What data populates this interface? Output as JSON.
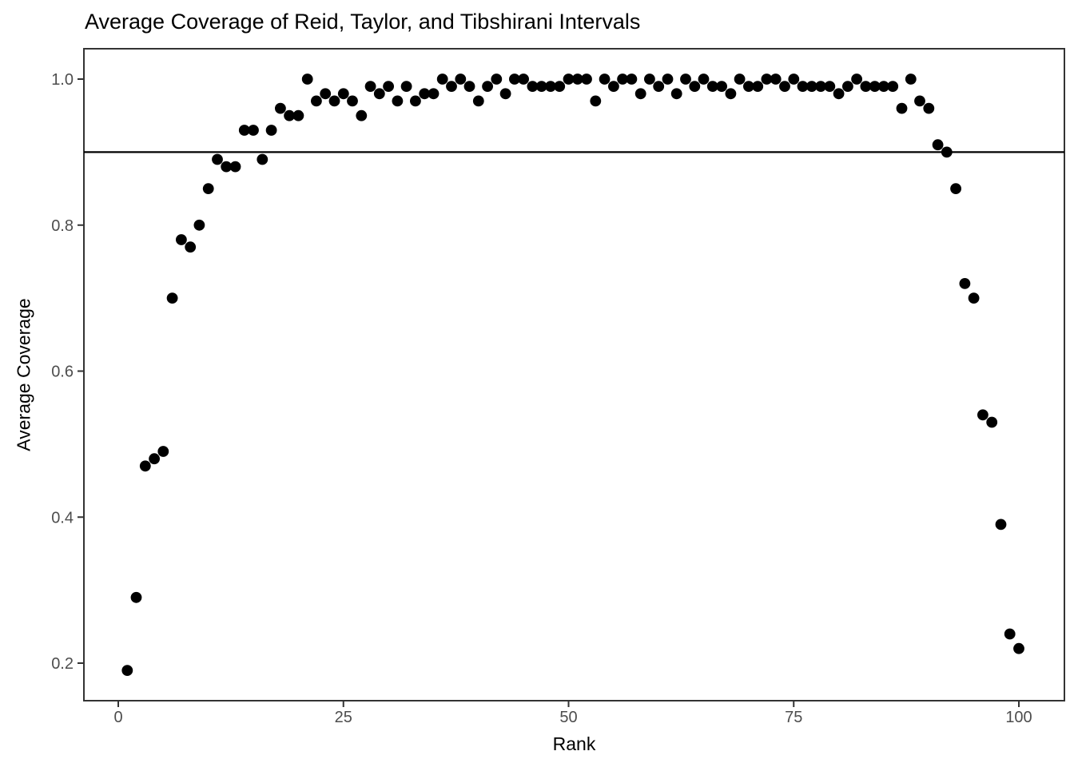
{
  "figure": {
    "title": "Average Coverage of Reid, Taylor, and Tibshirani Intervals",
    "x_axis_label": "Rank",
    "y_axis_label": "Average Coverage",
    "colors": {
      "point": "#000000",
      "reference_line": "#000000",
      "panel_border": "#333333",
      "tick_mark": "#333333",
      "tick_label": "#4d4d4d",
      "title_text": "#000000",
      "background": "#ffffff"
    }
  },
  "chart_data": {
    "type": "scatter",
    "title": "Average Coverage of Reid, Taylor, and Tibshirani Intervals",
    "xlabel": "Rank",
    "ylabel": "Average Coverage",
    "x_ticks": [
      "0",
      "25",
      "50",
      "75",
      "100"
    ],
    "y_ticks": [
      "0.2",
      "0.4",
      "0.6",
      "0.8",
      "1.0"
    ],
    "xlim": [
      -3.8,
      105.1
    ],
    "ylim": [
      0.148,
      1.043
    ],
    "grid": false,
    "legend": false,
    "reference_line_y": 0.9,
    "point_color": "#000000",
    "x": [
      1,
      2,
      3,
      4,
      5,
      6,
      7,
      8,
      9,
      10,
      11,
      12,
      13,
      14,
      15,
      16,
      17,
      18,
      19,
      20,
      21,
      22,
      23,
      24,
      25,
      26,
      27,
      28,
      29,
      30,
      31,
      32,
      33,
      34,
      35,
      36,
      37,
      38,
      39,
      40,
      41,
      42,
      43,
      44,
      45,
      46,
      47,
      48,
      49,
      50,
      51,
      52,
      53,
      54,
      55,
      56,
      57,
      58,
      59,
      60,
      61,
      62,
      63,
      64,
      65,
      66,
      67,
      68,
      69,
      70,
      71,
      72,
      73,
      74,
      75,
      76,
      77,
      78,
      79,
      80,
      81,
      82,
      83,
      84,
      85,
      86,
      87,
      88,
      89,
      90,
      91,
      92,
      93,
      94,
      95,
      96,
      97,
      98,
      99,
      100
    ],
    "y": [
      0.19,
      0.29,
      0.47,
      0.48,
      0.49,
      0.7,
      0.78,
      0.77,
      0.8,
      0.85,
      0.89,
      0.88,
      0.88,
      0.93,
      0.93,
      0.89,
      0.93,
      0.96,
      0.95,
      0.95,
      1.0,
      0.97,
      0.98,
      0.97,
      0.98,
      0.97,
      0.95,
      0.99,
      0.98,
      0.99,
      0.97,
      0.99,
      0.97,
      0.98,
      0.98,
      1.0,
      0.99,
      1.0,
      0.99,
      0.97,
      0.99,
      1.0,
      0.98,
      1.0,
      1.0,
      0.99,
      0.99,
      0.99,
      0.99,
      1.0,
      1.0,
      1.0,
      0.97,
      1.0,
      0.99,
      1.0,
      1.0,
      0.98,
      1.0,
      0.99,
      1.0,
      0.98,
      1.0,
      0.99,
      1.0,
      0.99,
      0.99,
      0.98,
      1.0,
      0.99,
      0.99,
      1.0,
      1.0,
      0.99,
      1.0,
      0.99,
      0.99,
      0.99,
      0.99,
      0.98,
      0.99,
      1.0,
      0.99,
      0.99,
      0.99,
      0.99,
      0.96,
      1.0,
      0.97,
      0.96,
      0.91,
      0.9,
      0.85,
      0.72,
      0.7,
      0.54,
      0.53,
      0.39,
      0.24,
      0.22
    ]
  }
}
